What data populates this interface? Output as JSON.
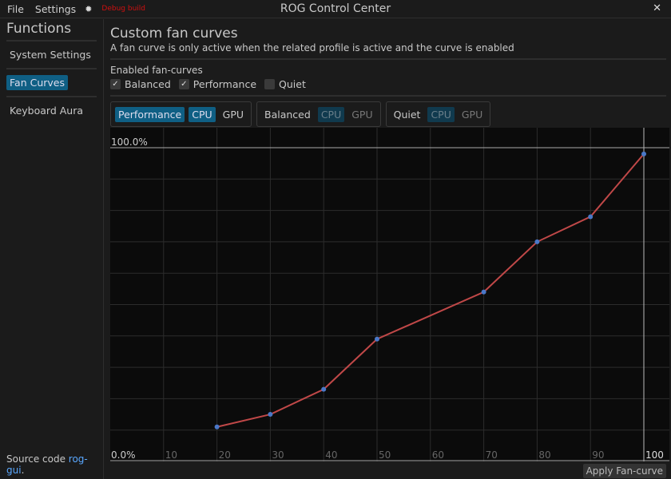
{
  "topbar": {
    "menus": [
      "File",
      "Settings"
    ],
    "theme_icon": "sun-icon",
    "debug": "Debug build",
    "title": "ROG Control Center",
    "close_icon": "close-icon"
  },
  "sidebar": {
    "title": "Functions",
    "items": [
      {
        "label": "System Settings",
        "active": false
      },
      {
        "label": "Fan Curves",
        "active": true
      },
      {
        "label": "Keyboard Aura",
        "active": false
      }
    ],
    "source_prefix": "Source code ",
    "source_link": "rog-gui",
    "source_suffix": "."
  },
  "main": {
    "title": "Custom fan curves",
    "description": "A fan curve is only active when the related profile is active and the curve is enabled",
    "enabled_label": "Enabled fan-curves",
    "checkboxes": [
      {
        "label": "Balanced",
        "checked": true
      },
      {
        "label": "Performance",
        "checked": true
      },
      {
        "label": "Quiet",
        "checked": false
      }
    ],
    "profiles": [
      {
        "name": "Performance",
        "selected": true,
        "cpu": "CPU",
        "gpu": "GPU",
        "cpu_selected": true
      },
      {
        "name": "Balanced",
        "selected": false,
        "cpu": "CPU",
        "gpu": "GPU"
      },
      {
        "name": "Quiet",
        "selected": false,
        "cpu": "CPU",
        "gpu": "GPU"
      }
    ],
    "apply_label": "Apply Fan-curve"
  },
  "chart_data": {
    "type": "line",
    "xlim": [
      0,
      100
    ],
    "ylim": [
      0,
      100
    ],
    "x_ticks": [
      "10",
      "20",
      "30",
      "40",
      "50",
      "60",
      "70",
      "80",
      "90",
      "100"
    ],
    "y_top_label": "100.0%",
    "y_bottom_label": "0.0%",
    "grid": true,
    "series": [
      {
        "x": [
          20,
          30,
          40,
          50,
          70,
          80,
          90,
          100
        ],
        "y": [
          11,
          15,
          23,
          39,
          54,
          70,
          78,
          98
        ],
        "color": "#c04848",
        "point_color": "#4a78c8"
      }
    ]
  }
}
